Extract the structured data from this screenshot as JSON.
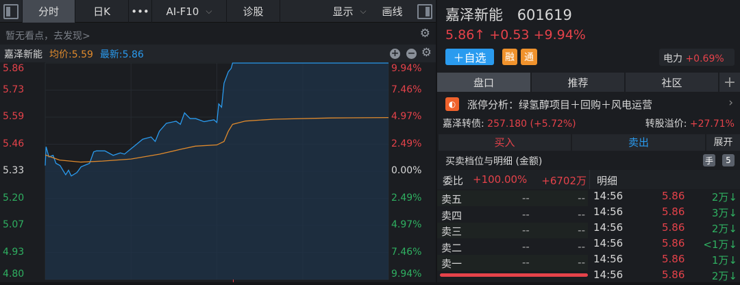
{
  "toolbar": {
    "tabs": [
      "分时",
      "日K",
      "•••",
      "AI-F10",
      "诊股",
      "显示",
      "画线"
    ]
  },
  "tip": "暂无看点，去发现>",
  "stockbar": {
    "name": "嘉泽新能",
    "avg": "均价:5.59",
    "latest": "最新:5.86"
  },
  "chart_data": {
    "type": "line",
    "y_left_ticks": [
      "5.86",
      "5.73",
      "5.59",
      "5.46",
      "5.33",
      "5.20",
      "5.07",
      "4.93",
      "4.80"
    ],
    "y_right_ticks": [
      "9.94%",
      "7.46%",
      "4.97%",
      "2.49%",
      "0.00%",
      "2.49%",
      "4.97%",
      "7.46%",
      "9.94%"
    ],
    "ylim": [
      4.8,
      5.86
    ],
    "prev_close": 5.33,
    "xlim_minutes": [
      0,
      240
    ],
    "series": [
      {
        "key": "price",
        "color": "#2a9bef",
        "x": [
          0,
          0.6,
          2.6,
          5.5,
          7.5,
          10.4,
          14.3,
          16.3,
          18.2,
          22.2,
          25.1,
          31,
          33.9,
          35.9,
          41.7,
          47.5,
          52.5,
          55.4,
          60.3,
          64.2,
          68.1,
          74,
          76.9,
          79.8,
          84.7,
          91.5,
          94.5,
          97.4,
          101.3,
          105.2,
          111.1,
          118,
          120,
          121.3,
          123.3,
          125,
          128,
          130,
          131,
          240
        ],
        "y": [
          5.358,
          5.45,
          5.4,
          5.408,
          5.369,
          5.358,
          5.313,
          5.335,
          5.307,
          5.324,
          5.352,
          5.369,
          5.425,
          5.43,
          5.43,
          5.408,
          5.42,
          5.414,
          5.442,
          5.464,
          5.487,
          5.498,
          5.476,
          5.526,
          5.565,
          5.575,
          5.56,
          5.616,
          5.588,
          5.588,
          5.573,
          5.582,
          5.569,
          5.66,
          5.644,
          5.761,
          5.817,
          5.834,
          5.86,
          5.86
        ]
      },
      {
        "key": "average",
        "color": "#e08a2c",
        "x": [
          0,
          10,
          25,
          40,
          60,
          80,
          95,
          105,
          120,
          125,
          128,
          131,
          140,
          160,
          200,
          240
        ],
        "y": [
          5.41,
          5.385,
          5.375,
          5.38,
          5.39,
          5.414,
          5.438,
          5.453,
          5.459,
          5.476,
          5.526,
          5.56,
          5.576,
          5.585,
          5.591,
          5.593
        ]
      }
    ]
  },
  "header": {
    "name": "嘉泽新能",
    "code": "601619",
    "price": "5.86↑",
    "change": "+0.53",
    "pct": "+9.94%",
    "watch": "＋自选",
    "badge1": "融",
    "badge2": "通",
    "sector": "电力",
    "sector_pct": "+0.69%"
  },
  "tabs": [
    "盘口",
    "推荐",
    "社区",
    "+"
  ],
  "analysis": {
    "text": "涨停分析：绿氢醇项目＋回购＋风电运营",
    "chevron": "›"
  },
  "bond": {
    "label": "嘉泽转债:",
    "value": "257.180 (+5.72%)",
    "prem_label": "转股溢价:",
    "prem": "+27.71%"
  },
  "trade": {
    "buy": "买入",
    "sell": "卖出",
    "expand": "展开"
  },
  "section": {
    "title": "买卖档位与明细 (金额)",
    "hand": "手",
    "five": "5"
  },
  "weibi": {
    "label": "委比",
    "pct": "+100.00%",
    "amt": "+6702万",
    "detail": "明细"
  },
  "asks": [
    {
      "label": "卖五",
      "p": "--",
      "v": "--"
    },
    {
      "label": "卖四",
      "p": "--",
      "v": "--"
    },
    {
      "label": "卖三",
      "p": "--",
      "v": "--"
    },
    {
      "label": "卖二",
      "p": "--",
      "v": "--"
    },
    {
      "label": "卖一",
      "p": "--",
      "v": "--"
    }
  ],
  "details": [
    {
      "t": "14:56",
      "p": "5.86",
      "v": "2万↓"
    },
    {
      "t": "14:56",
      "p": "5.86",
      "v": "3万↓"
    },
    {
      "t": "14:56",
      "p": "5.86",
      "v": "2万↓"
    },
    {
      "t": "14:56",
      "p": "5.86",
      "v": "<1万↓"
    },
    {
      "t": "14:56",
      "p": "5.86",
      "v": "1万↓"
    },
    {
      "t": "14:56",
      "p": "5.86",
      "v": "2万↓"
    }
  ]
}
